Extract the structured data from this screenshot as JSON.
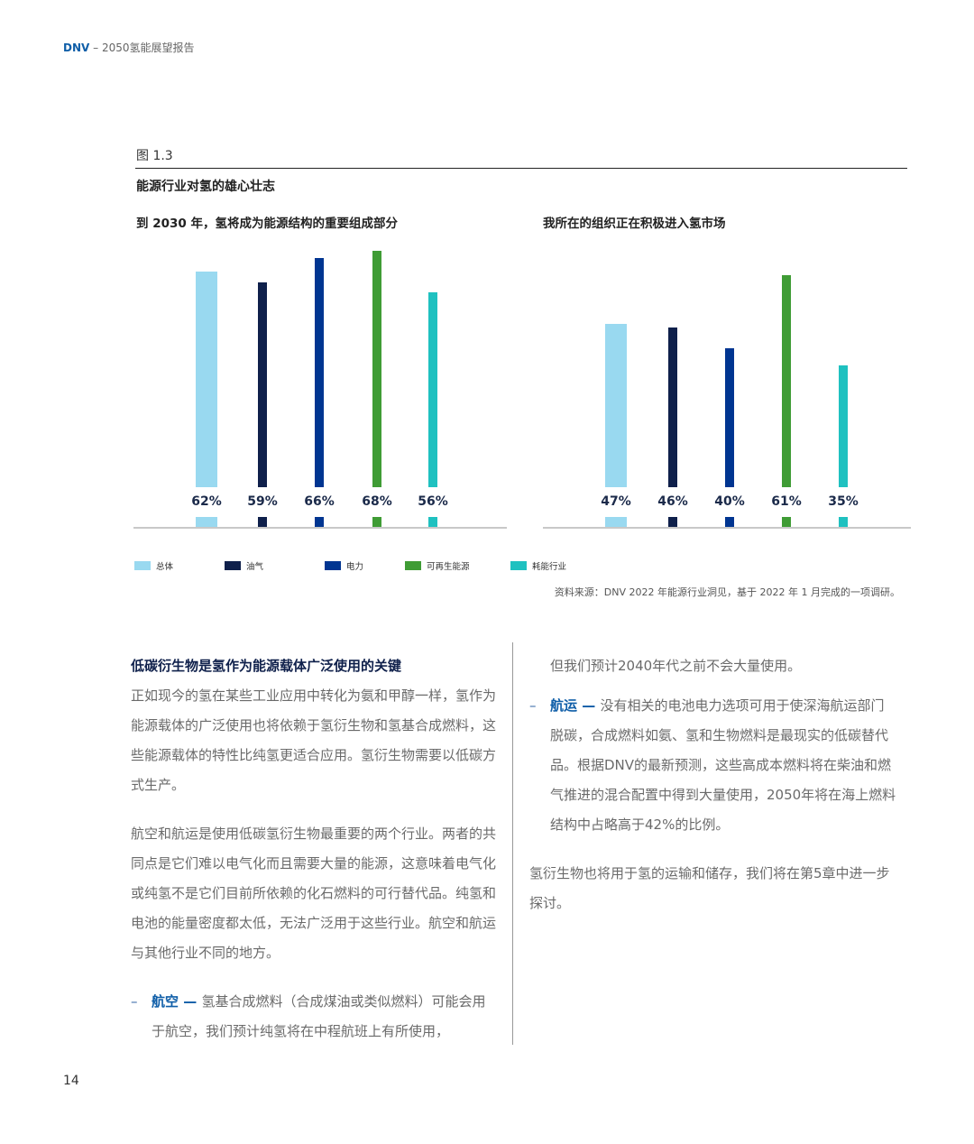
{
  "header": {
    "brand": "DNV",
    "title": "– 2050氢能展望报告"
  },
  "figure": {
    "number": "图 1.3",
    "title": "能源行业对氢的雄心壮志",
    "source": "资料来源：DNV 2022 年能源行业洞见，基于 2022 年 1 月完成的一项调研。"
  },
  "chart_data": [
    {
      "type": "bar",
      "title": "到 2030 年，氢将成为能源结构的重要组成部分",
      "categories": [
        "总体",
        "油气",
        "电力",
        "可再生能源",
        "耗能行业"
      ],
      "values": [
        62,
        59,
        66,
        68,
        56
      ],
      "labels": [
        "62%",
        "59%",
        "66%",
        "68%",
        "56%"
      ],
      "unit": "%",
      "ylim": [
        0,
        100
      ],
      "grid": false
    },
    {
      "type": "bar",
      "title": "我所在的组织正在积极进入氢市场",
      "categories": [
        "总体",
        "油气",
        "电力",
        "可再生能源",
        "耗能行业"
      ],
      "values": [
        47,
        46,
        40,
        61,
        35
      ],
      "labels": [
        "47%",
        "46%",
        "40%",
        "61%",
        "35%"
      ],
      "unit": "%",
      "ylim": [
        0,
        100
      ],
      "grid": false
    }
  ],
  "legend": [
    {
      "label": "总体",
      "color": "#99d9f0"
    },
    {
      "label": "油气",
      "color": "#0f204b"
    },
    {
      "label": "电力",
      "color": "#003591"
    },
    {
      "label": "可再生能源",
      "color": "#3f9c35"
    },
    {
      "label": "耗能行业",
      "color": "#1fc1c0"
    }
  ],
  "left": {
    "heading": "低碳衍生物是氢作为能源载体广泛使用的关键",
    "p1": "正如现今的氢在某些工业应用中转化为氨和甲醇一样，氢作为能源载体的广泛使用也将依赖于氢衍生物和氢基合成燃料，这些能源载体的特性比纯氢更适合应用。氢衍生物需要以低碳方式生产。",
    "p2": "航空和航运是使用低碳氢衍生物最重要的两个行业。两者的共同点是它们难以电气化而且需要大量的能源，这意味着电气化或纯氢不是它们目前所依赖的化石燃料的可行替代品。纯氢和电池的能量密度都太低，无法广泛用于这些行业。航空和航运与其他行业不同的地方。",
    "bullet_kw": "航空",
    "bullet_text": "氢基合成燃料（合成煤油或类似燃料）可能会用于航空，我们预计纯氢将在中程航班上有所使用，"
  },
  "right": {
    "cont": "但我们预计2040年代之前不会大量使用。",
    "bullet_kw": "航运",
    "bullet_text": "没有相关的电池电力选项可用于使深海航运部门脱碳，合成燃料如氨、氢和生物燃料是最现实的低碳替代品。根据DNV的最新预测，这些高成本燃料将在柴油和燃气推进的混合配置中得到大量使用，2050年将在海上燃料结构中占略高于42%的比例。",
    "p": "氢衍生物也将用于氢的运输和储存，我们将在第5章中进一步探讨。"
  },
  "page_number": "14"
}
